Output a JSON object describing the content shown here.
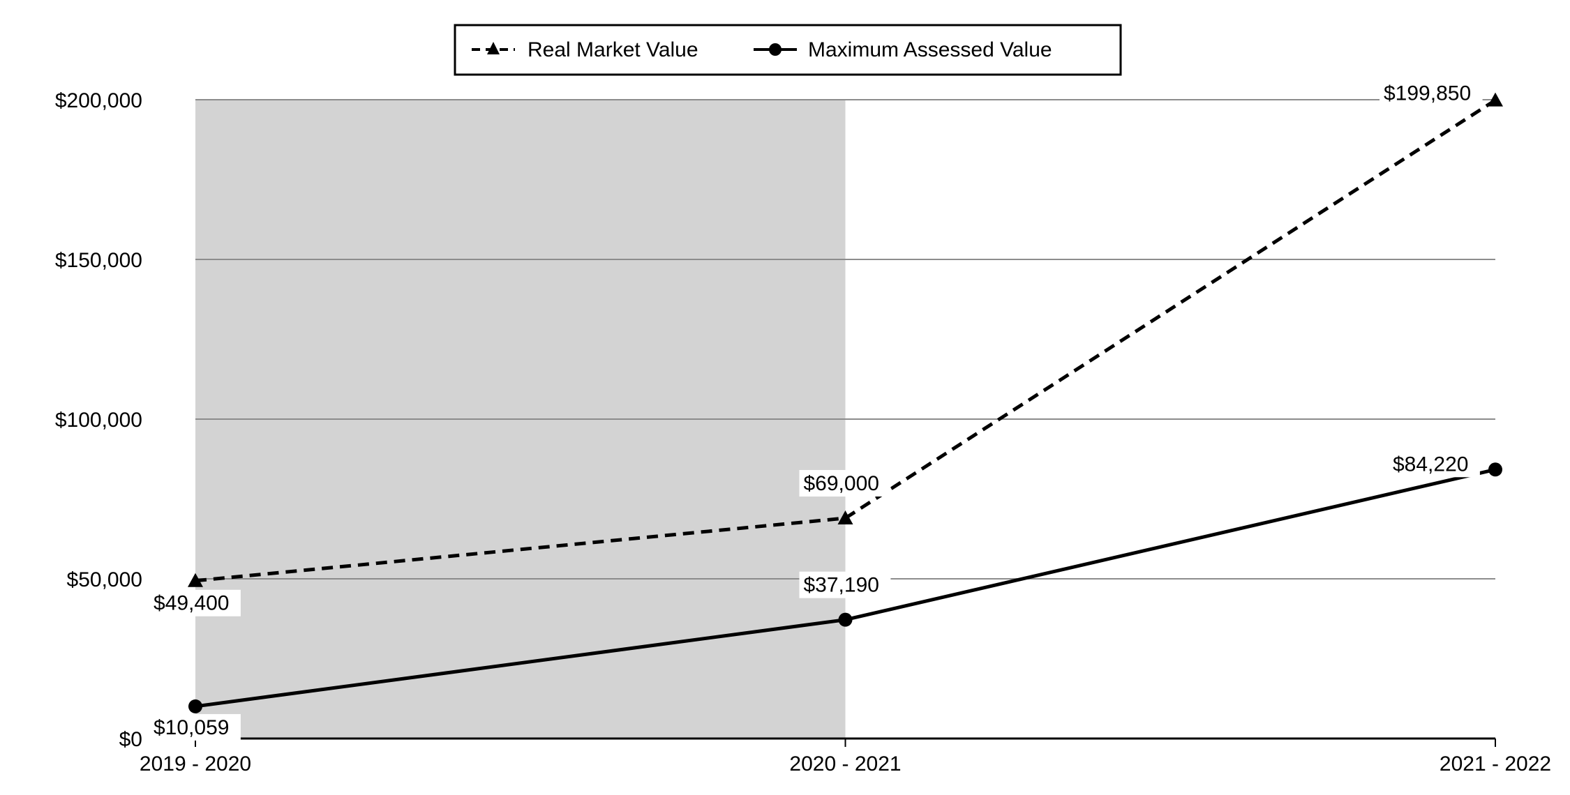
{
  "chart_data": {
    "type": "line",
    "title": "",
    "xlabel": "",
    "ylabel": "",
    "categories": [
      "2019 - 2020",
      "2020 - 2021",
      "2021 - 2022"
    ],
    "ylim": [
      0,
      200000
    ],
    "y_ticks": [
      0,
      50000,
      100000,
      150000,
      200000
    ],
    "y_tick_labels": [
      "$0",
      "$50,000",
      "$100,000",
      "$150,000",
      "$200,000"
    ],
    "grid": true,
    "legend_position": "top-center",
    "shaded_region": {
      "from": "2019 - 2020",
      "to": "2020 - 2021",
      "color": "#d3d3d3"
    },
    "series": [
      {
        "name": "Real Market Value",
        "values": [
          49400,
          69000,
          199850
        ],
        "labels": [
          "$49,400",
          "$69,000",
          "$199,850"
        ],
        "marker": "triangle",
        "line_style": "dashed",
        "color": "#000000"
      },
      {
        "name": "Maximum Assessed Value",
        "values": [
          10059,
          37190,
          84220
        ],
        "labels": [
          "$10,059",
          "$37,190",
          "$84,220"
        ],
        "marker": "circle",
        "line_style": "solid",
        "color": "#000000"
      }
    ]
  }
}
